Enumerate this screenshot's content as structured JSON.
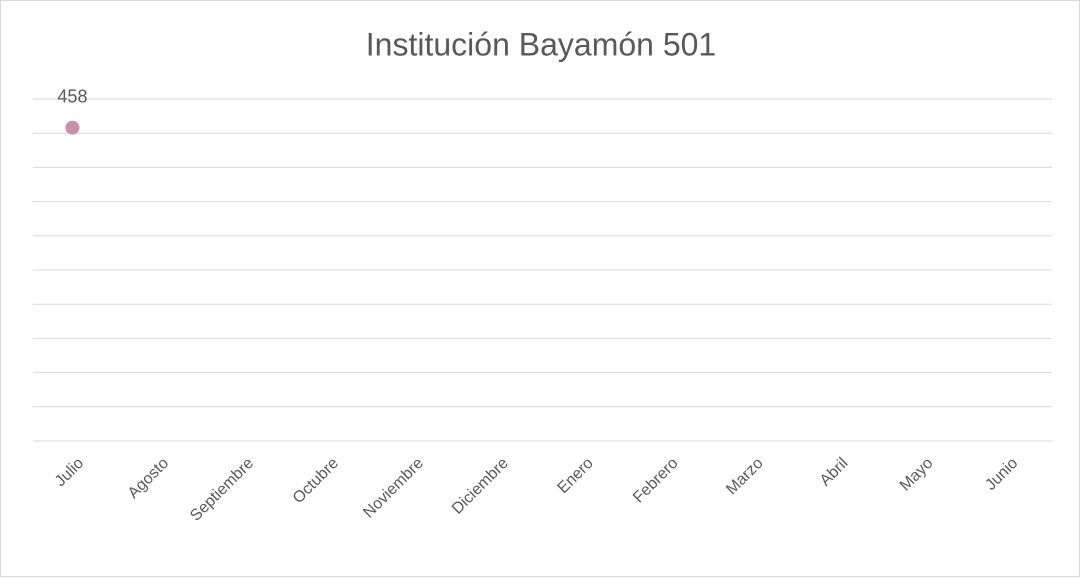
{
  "chart_data": {
    "type": "line",
    "title": "Institución Bayamón 501",
    "categories": [
      "Julio",
      "Agosto",
      "Septiembre",
      "Octubre",
      "Noviembre",
      "Diciembre",
      "Enero",
      "Febrero",
      "Marzo",
      "Abril",
      "Mayo",
      "Junio"
    ],
    "values": [
      458,
      null,
      null,
      null,
      null,
      null,
      null,
      null,
      null,
      null,
      null,
      null
    ],
    "color": "#c990ad",
    "ylim": [
      0,
      500
    ],
    "yticks": [
      0,
      50,
      100,
      150,
      200,
      250,
      300,
      350,
      400,
      450,
      500
    ],
    "grid": true
  }
}
